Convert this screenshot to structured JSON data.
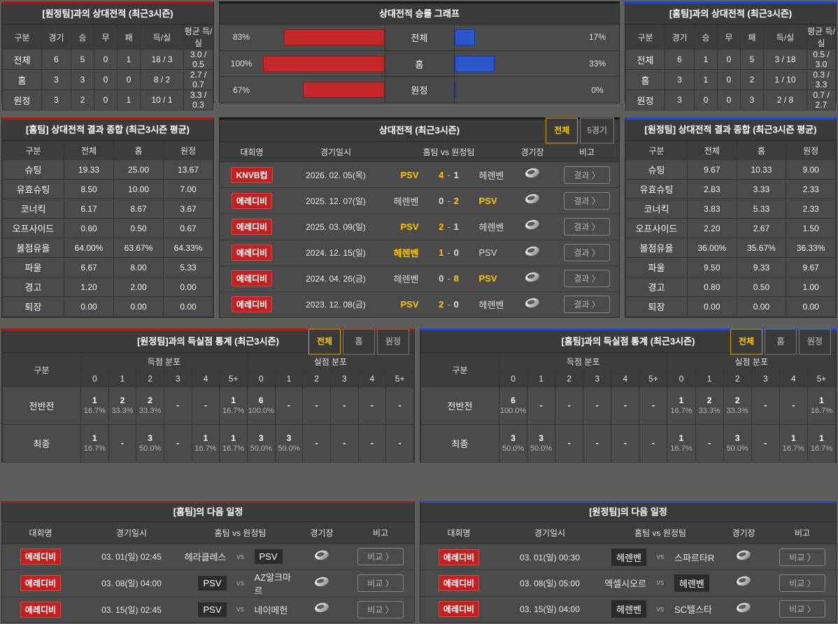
{
  "colors": {
    "accent_red": "#a32020",
    "accent_blue": "#2448c0",
    "bar_red": "#c32727",
    "bar_blue": "#2a55cb",
    "highlight_yellow": "#ffc600",
    "badge_red": "#c42020"
  },
  "labels": {
    "vs": "vs",
    "score_sep": "-"
  },
  "h2h_vs_away": {
    "title": "[원정팀]과의 상대전적 (최근3시즌)",
    "columns": [
      "구분",
      "경기",
      "승",
      "무",
      "패",
      "득/실",
      "평균 득/실"
    ],
    "rows": [
      [
        "전체",
        "6",
        "5",
        "0",
        "1",
        "18 / 3",
        "3.0 / 0.5"
      ],
      [
        "홈",
        "3",
        "3",
        "0",
        "0",
        "8 / 2",
        "2.7 / 0.7"
      ],
      [
        "원정",
        "3",
        "2",
        "0",
        "1",
        "10 / 1",
        "3.3 / 0.3"
      ]
    ]
  },
  "winrate": {
    "title": "상대전적 승률 그래프",
    "rows": [
      {
        "label": "전체",
        "home_pct_label": "83%",
        "home_pct": 83,
        "away_pct_label": "17%",
        "away_pct": 17
      },
      {
        "label": "홈",
        "home_pct_label": "100%",
        "home_pct": 100,
        "away_pct_label": "33%",
        "away_pct": 33
      },
      {
        "label": "원정",
        "home_pct_label": "67%",
        "home_pct": 67,
        "away_pct_label": "0%",
        "away_pct": 0
      }
    ]
  },
  "h2h_vs_home": {
    "title": "[홈팀]과의 상대전적 (최근3시즌)",
    "columns": [
      "구분",
      "경기",
      "승",
      "무",
      "패",
      "득/실",
      "평균 득/실"
    ],
    "rows": [
      [
        "전체",
        "6",
        "1",
        "0",
        "5",
        "3 / 18",
        "0.5 / 3.0"
      ],
      [
        "홈",
        "3",
        "1",
        "0",
        "2",
        "1 / 10",
        "0.3 / 3.3"
      ],
      [
        "원정",
        "3",
        "0",
        "0",
        "3",
        "2 / 8",
        "0.7 / 2.7"
      ]
    ]
  },
  "summary_home": {
    "title": "[홈팀] 상대전적 결과 종합 (최근3시즌 평균)",
    "columns": [
      "구분",
      "전체",
      "홈",
      "원정"
    ],
    "rows": [
      [
        "슈팅",
        "19.33",
        "25.00",
        "13.67"
      ],
      [
        "유효슈팅",
        "8.50",
        "10.00",
        "7.00"
      ],
      [
        "코너킥",
        "6.17",
        "8.67",
        "3.67"
      ],
      [
        "오프사이드",
        "0.60",
        "0.50",
        "0.67"
      ],
      [
        "볼점유율",
        "64.00%",
        "63.67%",
        "64.33%"
      ],
      [
        "파울",
        "6.67",
        "8.00",
        "5.33"
      ],
      [
        "경고",
        "1.20",
        "2.00",
        "0.00"
      ],
      [
        "퇴장",
        "0.00",
        "0.00",
        "0.00"
      ]
    ]
  },
  "matches": {
    "title": "상대전적 (최근3시즌)",
    "tabs": [
      {
        "label": "전체",
        "active": true
      },
      {
        "label": "5경기",
        "active": false
      }
    ],
    "columns": {
      "league": "대회명",
      "datetime": "경기일시",
      "teams": "홈팀  vs  원정팀",
      "stadium": "경기장",
      "note": "비고"
    },
    "result_button": "결과 〉",
    "rows": [
      {
        "league": "KNVB컵",
        "datetime": "2026. 02. 05(목)",
        "home": "PSV",
        "score_home": "4",
        "score_away": "1",
        "away": "헤렌벤",
        "winner": "home"
      },
      {
        "league": "에레디비",
        "datetime": "2025. 12. 07(일)",
        "home": "헤렌벤",
        "score_home": "0",
        "score_away": "2",
        "away": "PSV",
        "winner": "away"
      },
      {
        "league": "에레디비",
        "datetime": "2025. 03. 09(일)",
        "home": "PSV",
        "score_home": "2",
        "score_away": "1",
        "away": "헤렌벤",
        "winner": "home"
      },
      {
        "league": "에레디비",
        "datetime": "2024. 12. 15(일)",
        "home": "헤렌벤",
        "score_home": "1",
        "score_away": "0",
        "away": "PSV",
        "winner": "home"
      },
      {
        "league": "에레디비",
        "datetime": "2024. 04. 26(금)",
        "home": "헤렌벤",
        "score_home": "0",
        "score_away": "8",
        "away": "PSV",
        "winner": "away"
      },
      {
        "league": "에레디비",
        "datetime": "2023. 12. 08(금)",
        "home": "PSV",
        "score_home": "2",
        "score_away": "0",
        "away": "헤렌벤",
        "winner": "home"
      }
    ]
  },
  "summary_away": {
    "title": "[원정팀] 상대전적 결과 종합 (최근3시즌 평균)",
    "columns": [
      "구분",
      "전체",
      "홈",
      "원정"
    ],
    "rows": [
      [
        "슈팅",
        "9.67",
        "10.33",
        "9.00"
      ],
      [
        "유효슈팅",
        "2.83",
        "3.33",
        "2.33"
      ],
      [
        "코너킥",
        "3.83",
        "5.33",
        "2.33"
      ],
      [
        "오프사이드",
        "2.20",
        "2.67",
        "1.50"
      ],
      [
        "볼점유율",
        "36.00%",
        "35.67%",
        "36.33%"
      ],
      [
        "파울",
        "9.50",
        "9.33",
        "9.67"
      ],
      [
        "경고",
        "0.80",
        "0.50",
        "1.00"
      ],
      [
        "퇴장",
        "0.00",
        "0.00",
        "0.00"
      ]
    ]
  },
  "goals_vs_away": {
    "title": "[원정팀]과의 득실점 통계 (최근3시즌)",
    "tabs": [
      {
        "label": "전체",
        "active": true
      },
      {
        "label": "홈",
        "active": false
      },
      {
        "label": "원정",
        "active": false
      }
    ],
    "col_label": "구분",
    "scored_header": "득점 분포",
    "conceded_header": "실점 분포",
    "bins": [
      "0",
      "1",
      "2",
      "3",
      "4",
      "5+"
    ],
    "rows": [
      {
        "label": "전반전",
        "scored": [
          {
            "n": "1",
            "p": "16.7%"
          },
          {
            "n": "2",
            "p": "33.3%"
          },
          {
            "n": "2",
            "p": "33.3%"
          },
          {
            "n": "-",
            "p": ""
          },
          {
            "n": "-",
            "p": ""
          },
          {
            "n": "1",
            "p": "16.7%"
          }
        ],
        "conceded": [
          {
            "n": "6",
            "p": "100.0%"
          },
          {
            "n": "-",
            "p": ""
          },
          {
            "n": "-",
            "p": ""
          },
          {
            "n": "-",
            "p": ""
          },
          {
            "n": "-",
            "p": ""
          },
          {
            "n": "-",
            "p": ""
          }
        ]
      },
      {
        "label": "최종",
        "scored": [
          {
            "n": "1",
            "p": "16.7%"
          },
          {
            "n": "-",
            "p": ""
          },
          {
            "n": "3",
            "p": "50.0%"
          },
          {
            "n": "-",
            "p": ""
          },
          {
            "n": "1",
            "p": "16.7%"
          },
          {
            "n": "1",
            "p": "16.7%"
          }
        ],
        "conceded": [
          {
            "n": "3",
            "p": "50.0%"
          },
          {
            "n": "3",
            "p": "50.0%"
          },
          {
            "n": "-",
            "p": ""
          },
          {
            "n": "-",
            "p": ""
          },
          {
            "n": "-",
            "p": ""
          },
          {
            "n": "-",
            "p": ""
          }
        ]
      }
    ]
  },
  "goals_vs_home": {
    "title": "[홈팀]과의 득실점 통계 (최근3시즌)",
    "tabs": [
      {
        "label": "전체",
        "active": true
      },
      {
        "label": "홈",
        "active": false
      },
      {
        "label": "원정",
        "active": false
      }
    ],
    "col_label": "구분",
    "scored_header": "득점 분포",
    "conceded_header": "실점 분포",
    "bins": [
      "0",
      "1",
      "2",
      "3",
      "4",
      "5+"
    ],
    "rows": [
      {
        "label": "전반전",
        "scored": [
          {
            "n": "6",
            "p": "100.0%"
          },
          {
            "n": "-",
            "p": ""
          },
          {
            "n": "-",
            "p": ""
          },
          {
            "n": "-",
            "p": ""
          },
          {
            "n": "-",
            "p": ""
          },
          {
            "n": "-",
            "p": ""
          }
        ],
        "conceded": [
          {
            "n": "1",
            "p": "16.7%"
          },
          {
            "n": "2",
            "p": "33.3%"
          },
          {
            "n": "2",
            "p": "33.3%"
          },
          {
            "n": "-",
            "p": ""
          },
          {
            "n": "-",
            "p": ""
          },
          {
            "n": "1",
            "p": "16.7%"
          }
        ]
      },
      {
        "label": "최종",
        "scored": [
          {
            "n": "3",
            "p": "50.0%"
          },
          {
            "n": "3",
            "p": "50.0%"
          },
          {
            "n": "-",
            "p": ""
          },
          {
            "n": "-",
            "p": ""
          },
          {
            "n": "-",
            "p": ""
          },
          {
            "n": "-",
            "p": ""
          }
        ],
        "conceded": [
          {
            "n": "1",
            "p": "16.7%"
          },
          {
            "n": "-",
            "p": ""
          },
          {
            "n": "3",
            "p": "50.0%"
          },
          {
            "n": "-",
            "p": ""
          },
          {
            "n": "1",
            "p": "16.7%"
          },
          {
            "n": "1",
            "p": "16.7%"
          }
        ]
      }
    ]
  },
  "schedule_home": {
    "title": "[홈팀]의 다음 일정",
    "columns": {
      "league": "대회명",
      "datetime": "경기일시",
      "teams": "홈팀  vs  원정팀",
      "stadium": "경기장",
      "note": "비고"
    },
    "compare_button": "비교 〉",
    "rows": [
      {
        "league": "에레디비",
        "datetime": "03. 01(일) 02:45",
        "home": "헤라클레스",
        "away": "PSV",
        "highlight": "away"
      },
      {
        "league": "에레디비",
        "datetime": "03. 08(일) 04:00",
        "home": "PSV",
        "away": "AZ알크마르",
        "highlight": "home"
      },
      {
        "league": "에레디비",
        "datetime": "03. 15(일) 02:45",
        "home": "PSV",
        "away": "네이메헌",
        "highlight": "home"
      }
    ]
  },
  "schedule_away": {
    "title": "[원정팀]의 다음 일정",
    "columns": {
      "league": "대회명",
      "datetime": "경기일시",
      "teams": "홈팀  vs  원정팀",
      "stadium": "경기장",
      "note": "비고"
    },
    "compare_button": "비교 〉",
    "rows": [
      {
        "league": "에레디비",
        "datetime": "03. 01(일) 00:30",
        "home": "헤렌벤",
        "away": "스파르타R",
        "highlight": "home"
      },
      {
        "league": "에레디비",
        "datetime": "03. 08(일) 05:00",
        "home": "엑셀시오르",
        "away": "헤렌벤",
        "highlight": "away"
      },
      {
        "league": "에레디비",
        "datetime": "03. 15(일) 04:00",
        "home": "헤렌벤",
        "away": "SC텔스타",
        "highlight": "home"
      }
    ]
  }
}
